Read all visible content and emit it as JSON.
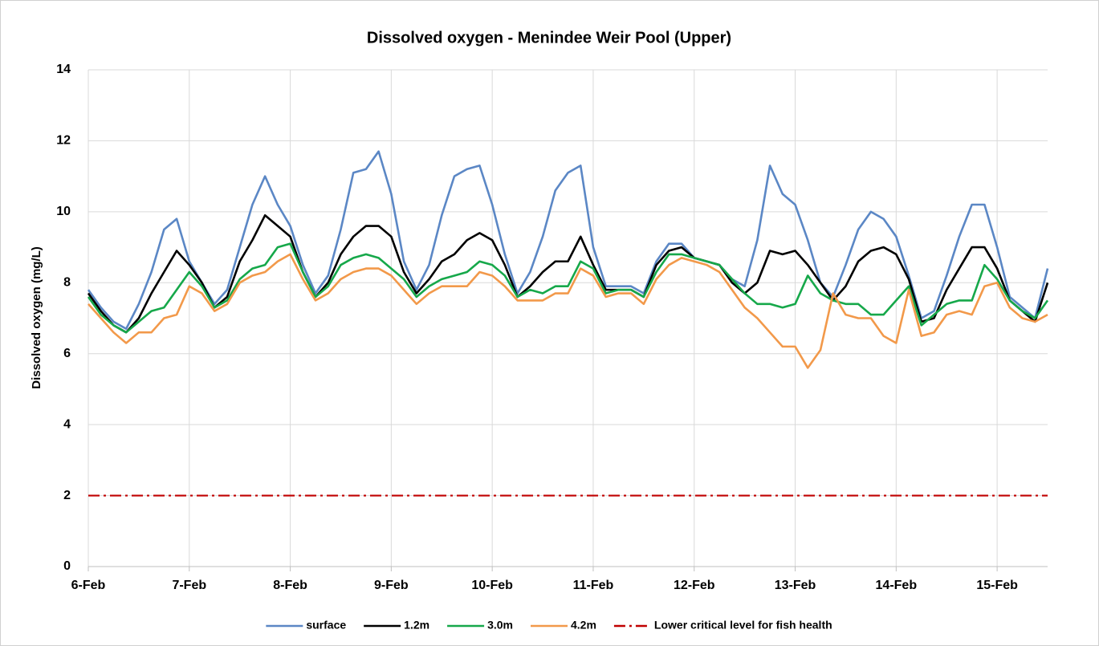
{
  "chart_data": {
    "type": "line",
    "title": "Dissolved oxygen - Menindee Weir Pool (Upper)",
    "y_label": "Dissolved oxygen (mg/L)",
    "x": [
      6,
      6.125,
      6.25,
      6.375,
      6.5,
      6.625,
      6.75,
      6.875,
      7,
      7.125,
      7.25,
      7.375,
      7.5,
      7.625,
      7.75,
      7.875,
      8,
      8.125,
      8.25,
      8.375,
      8.5,
      8.625,
      8.75,
      8.875,
      9,
      9.125,
      9.25,
      9.375,
      9.5,
      9.625,
      9.75,
      9.875,
      10,
      10.125,
      10.25,
      10.375,
      10.5,
      10.625,
      10.75,
      10.875,
      11,
      11.125,
      11.25,
      11.375,
      11.5,
      11.625,
      11.75,
      11.875,
      12,
      12.125,
      12.25,
      12.375,
      12.5,
      12.625,
      12.75,
      12.875,
      13,
      13.125,
      13.25,
      13.375,
      13.5,
      13.625,
      13.75,
      13.875,
      14,
      14.125,
      14.25,
      14.375,
      14.5,
      14.625,
      14.75,
      14.875,
      15,
      15.125,
      15.25,
      15.375,
      15.5
    ],
    "series": [
      {
        "name": "surface",
        "color": "#5b87c5",
        "values": [
          7.8,
          7.3,
          6.9,
          6.7,
          7.4,
          8.3,
          9.5,
          9.8,
          8.6,
          8.0,
          7.4,
          7.8,
          9.0,
          10.2,
          11.0,
          10.2,
          9.6,
          8.5,
          7.7,
          8.2,
          9.5,
          11.1,
          11.2,
          11.7,
          10.5,
          8.6,
          7.8,
          8.5,
          9.9,
          11.0,
          11.2,
          11.3,
          10.2,
          8.8,
          7.7,
          8.3,
          9.3,
          10.6,
          11.1,
          11.3,
          9.0,
          7.9,
          7.9,
          7.9,
          7.7,
          8.6,
          9.1,
          9.1,
          8.7,
          8.6,
          8.5,
          8.1,
          7.9,
          9.2,
          11.3,
          10.5,
          10.2,
          9.2,
          8.0,
          7.6,
          8.5,
          9.5,
          10.0,
          9.8,
          9.3,
          8.2,
          7.0,
          7.2,
          8.2,
          9.3,
          10.2,
          10.2,
          9.0,
          7.6,
          7.3,
          7.0,
          8.4
        ]
      },
      {
        "name": "1.2m",
        "color": "#000000",
        "values": [
          7.7,
          7.2,
          6.8,
          6.6,
          7.0,
          7.7,
          8.3,
          8.9,
          8.5,
          8.0,
          7.3,
          7.6,
          8.6,
          9.2,
          9.9,
          9.6,
          9.3,
          8.3,
          7.6,
          8.0,
          8.8,
          9.3,
          9.6,
          9.6,
          9.3,
          8.3,
          7.7,
          8.1,
          8.6,
          8.8,
          9.2,
          9.4,
          9.2,
          8.5,
          7.6,
          7.9,
          8.3,
          8.6,
          8.6,
          9.3,
          8.5,
          7.8,
          7.8,
          7.8,
          7.6,
          8.5,
          8.9,
          9.0,
          8.7,
          8.6,
          8.5,
          8.0,
          7.7,
          8.0,
          8.9,
          8.8,
          8.9,
          8.5,
          8.0,
          7.5,
          7.9,
          8.6,
          8.9,
          9.0,
          8.8,
          8.1,
          6.9,
          7.0,
          7.8,
          8.4,
          9.0,
          9.0,
          8.4,
          7.5,
          7.2,
          6.9,
          8.0
        ]
      },
      {
        "name": "3.0m",
        "color": "#16a84a",
        "values": [
          7.6,
          7.1,
          6.8,
          6.6,
          6.9,
          7.2,
          7.3,
          7.8,
          8.3,
          7.9,
          7.3,
          7.5,
          8.1,
          8.4,
          8.5,
          9.0,
          9.1,
          8.3,
          7.6,
          7.9,
          8.5,
          8.7,
          8.8,
          8.7,
          8.4,
          8.1,
          7.6,
          7.9,
          8.1,
          8.2,
          8.3,
          8.6,
          8.5,
          8.2,
          7.6,
          7.8,
          7.7,
          7.9,
          7.9,
          8.6,
          8.4,
          7.7,
          7.8,
          7.8,
          7.6,
          8.3,
          8.8,
          8.8,
          8.7,
          8.6,
          8.5,
          8.1,
          7.7,
          7.4,
          7.4,
          7.3,
          7.4,
          8.2,
          7.7,
          7.5,
          7.4,
          7.4,
          7.1,
          7.1,
          7.5,
          7.9,
          6.8,
          7.1,
          7.4,
          7.5,
          7.5,
          8.5,
          8.1,
          7.5,
          7.2,
          7.0,
          7.5
        ]
      },
      {
        "name": "4.2m",
        "color": "#f2994a",
        "values": [
          7.4,
          7.0,
          6.6,
          6.3,
          6.6,
          6.6,
          7.0,
          7.1,
          7.9,
          7.7,
          7.2,
          7.4,
          8.0,
          8.2,
          8.3,
          8.6,
          8.8,
          8.1,
          7.5,
          7.7,
          8.1,
          8.3,
          8.4,
          8.4,
          8.2,
          7.8,
          7.4,
          7.7,
          7.9,
          7.9,
          7.9,
          8.3,
          8.2,
          7.9,
          7.5,
          7.5,
          7.5,
          7.7,
          7.7,
          8.4,
          8.2,
          7.6,
          7.7,
          7.7,
          7.4,
          8.1,
          8.5,
          8.7,
          8.6,
          8.5,
          8.3,
          7.8,
          7.3,
          7.0,
          6.6,
          6.2,
          6.2,
          5.6,
          6.1,
          7.7,
          7.1,
          7.0,
          7.0,
          6.5,
          6.3,
          7.8,
          6.5,
          6.6,
          7.1,
          7.2,
          7.1,
          7.9,
          8.0,
          7.3,
          7.0,
          6.9,
          7.1
        ]
      }
    ],
    "reference_line": {
      "name": "Lower critical level for fish health",
      "value": 2,
      "color": "#c00000",
      "dash": "dashdot"
    },
    "xlim": [
      6,
      15.5
    ],
    "xticks": [
      {
        "value": 6,
        "label": "6-Feb"
      },
      {
        "value": 7,
        "label": "7-Feb"
      },
      {
        "value": 8,
        "label": "8-Feb"
      },
      {
        "value": 9,
        "label": "9-Feb"
      },
      {
        "value": 10,
        "label": "10-Feb"
      },
      {
        "value": 11,
        "label": "11-Feb"
      },
      {
        "value": 12,
        "label": "12-Feb"
      },
      {
        "value": 13,
        "label": "13-Feb"
      },
      {
        "value": 14,
        "label": "14-Feb"
      },
      {
        "value": 15,
        "label": "15-Feb"
      }
    ],
    "ylim": [
      0,
      14
    ],
    "yticks": [
      0,
      2,
      4,
      6,
      8,
      10,
      12,
      14
    ],
    "grid": true,
    "legend": "bottom"
  }
}
